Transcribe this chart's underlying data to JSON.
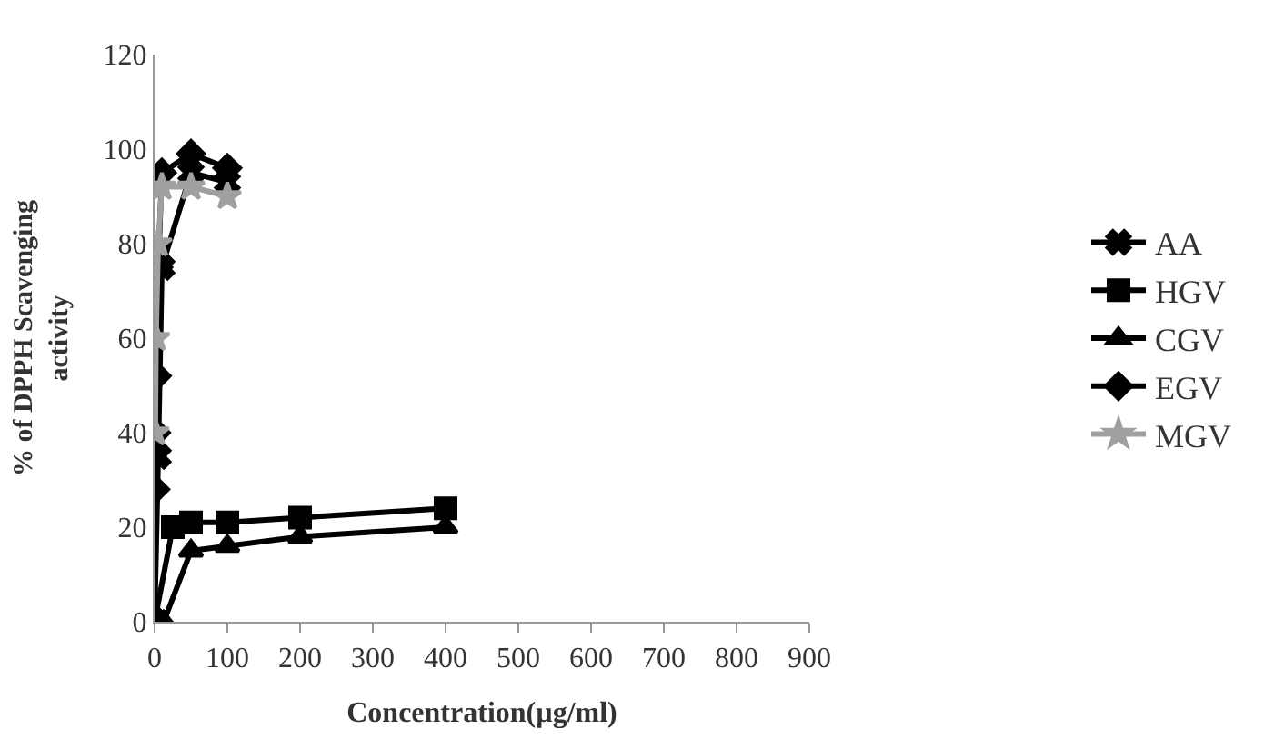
{
  "chart_data": {
    "type": "line",
    "xlabel": "Concentration(µg/ml)",
    "ylabel": "% of DPPH Scavenging activity",
    "xlim": [
      0,
      900
    ],
    "xticks": [
      0,
      100,
      200,
      300,
      400,
      500,
      600,
      700,
      800,
      900
    ],
    "ylim": [
      0,
      120
    ],
    "yticks": [
      0,
      20,
      40,
      60,
      80,
      100,
      120
    ],
    "legend": "right",
    "series": [
      {
        "name": "AA",
        "color": "#000000",
        "marker": "cross",
        "x": [
          0,
          5,
          10,
          50,
          100
        ],
        "values": [
          0,
          35,
          75,
          95,
          93
        ]
      },
      {
        "name": "HGV",
        "color": "#000000",
        "marker": "square",
        "x": [
          0,
          25,
          50,
          100,
          200,
          400
        ],
        "values": [
          0,
          20,
          21,
          21,
          22,
          24
        ]
      },
      {
        "name": "CGV",
        "color": "#000000",
        "marker": "triangle",
        "x": [
          0,
          12.5,
          50,
          100,
          200,
          400
        ],
        "values": [
          0,
          0,
          15,
          16,
          18,
          20
        ]
      },
      {
        "name": "EGV",
        "color": "#000000",
        "marker": "diamond",
        "x": [
          1,
          2,
          3,
          5,
          10,
          50,
          100
        ],
        "values": [
          28,
          40,
          52,
          75,
          95,
          99,
          96
        ]
      },
      {
        "name": "MGV",
        "color": "#a0a0a0",
        "marker": "star",
        "x": [
          1,
          2,
          5,
          10,
          50,
          100
        ],
        "values": [
          40,
          60,
          80,
          92,
          92,
          90
        ]
      }
    ]
  }
}
